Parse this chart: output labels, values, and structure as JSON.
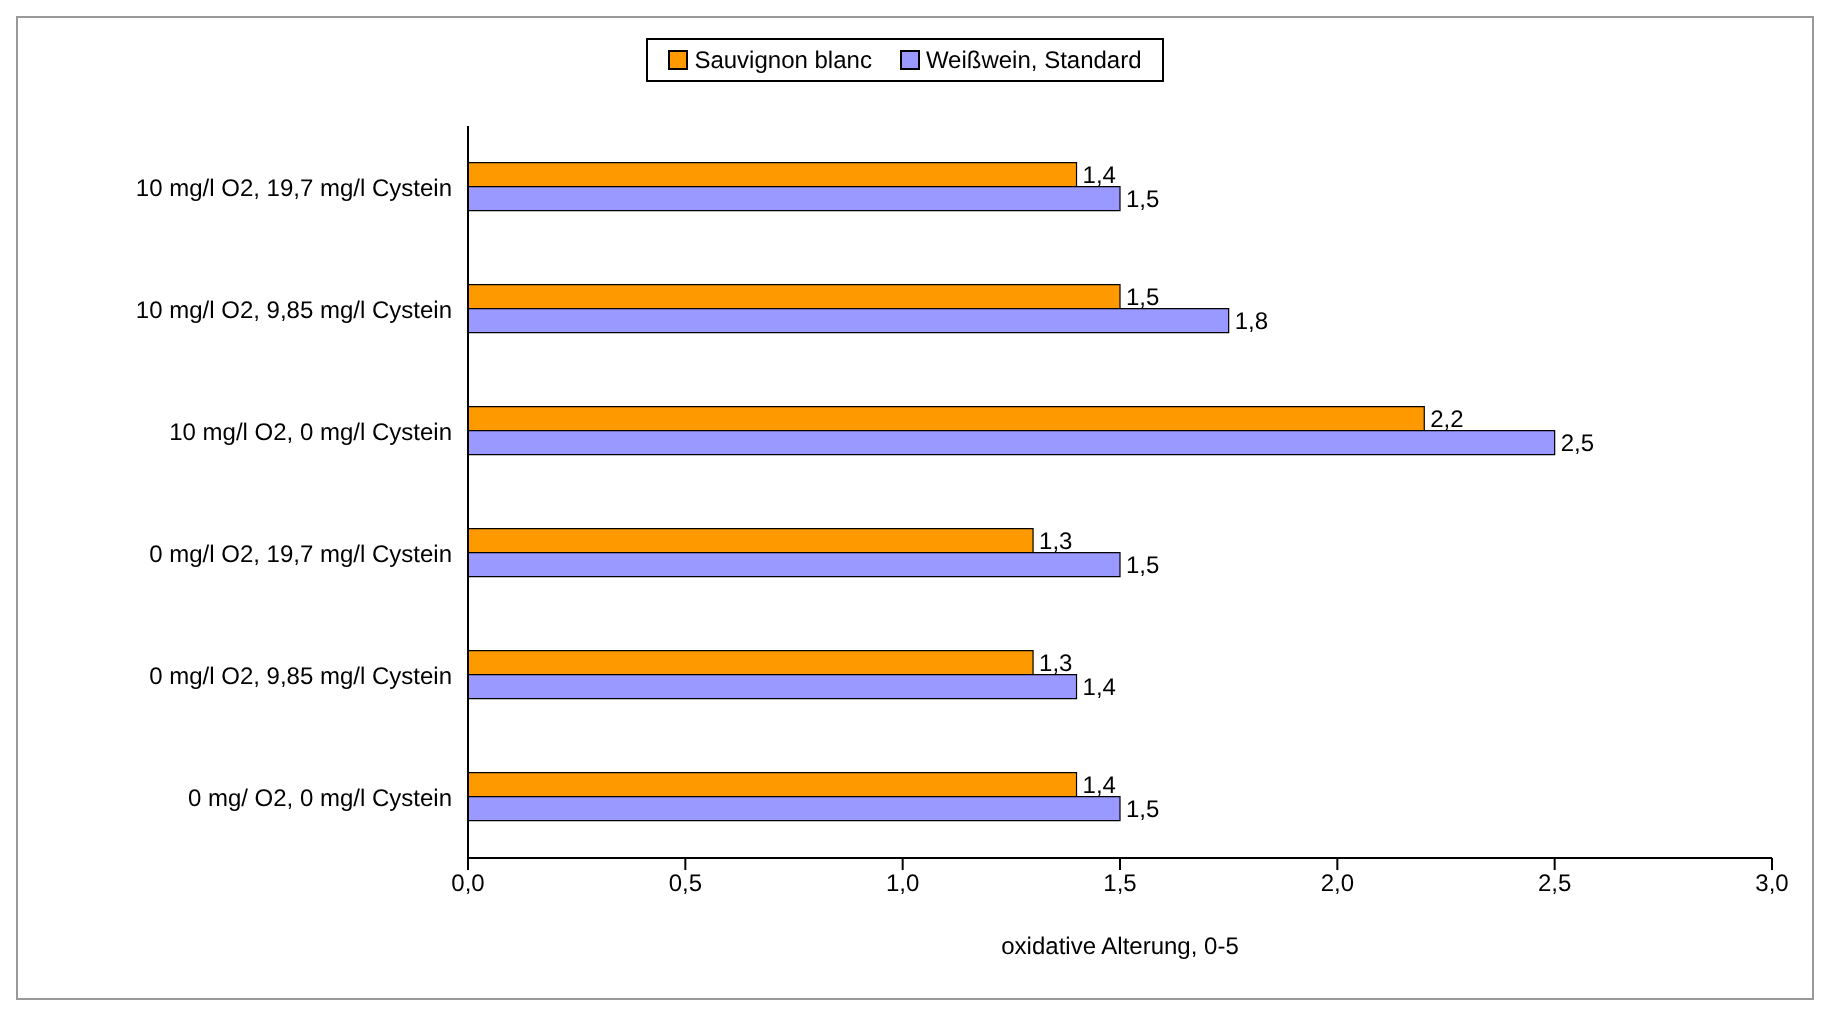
{
  "chart_data": {
    "type": "bar",
    "orientation": "horizontal",
    "xlabel": "oxidative Alterung, 0-5",
    "categories": [
      "10 mg/l O2, 19,7 mg/l Cystein",
      "10 mg/l O2, 9,85 mg/l Cystein",
      "10 mg/l O2, 0 mg/l Cystein",
      "0 mg/l O2, 19,7 mg/l Cystein",
      "0 mg/l O2, 9,85 mg/l Cystein",
      "0 mg/ O2, 0 mg/l Cystein"
    ],
    "series": [
      {
        "name": "Sauvignon blanc",
        "color": "#ff9900",
        "values": [
          1.4,
          1.5,
          2.2,
          1.3,
          1.3,
          1.4
        ],
        "value_labels": [
          "1,4",
          "1,5",
          "2,2",
          "1,3",
          "1,3",
          "1,4"
        ]
      },
      {
        "name": "Weißwein, Standard",
        "color": "#9999ff",
        "values": [
          1.5,
          1.75,
          2.5,
          1.5,
          1.4,
          1.5
        ],
        "value_labels": [
          "1,5",
          "1,8",
          "2,5",
          "1,5",
          "1,4",
          "1,5"
        ]
      }
    ],
    "xlim": [
      0,
      3
    ],
    "xticks": [
      {
        "value": 0,
        "label": "0,0"
      },
      {
        "value": 0.5,
        "label": "0,5"
      },
      {
        "value": 1,
        "label": "1,0"
      },
      {
        "value": 1.5,
        "label": "1,5"
      },
      {
        "value": 2,
        "label": "2,0"
      },
      {
        "value": 2.5,
        "label": "2,5"
      },
      {
        "value": 3,
        "label": "3,0"
      }
    ],
    "legend": "top",
    "grid": false
  }
}
